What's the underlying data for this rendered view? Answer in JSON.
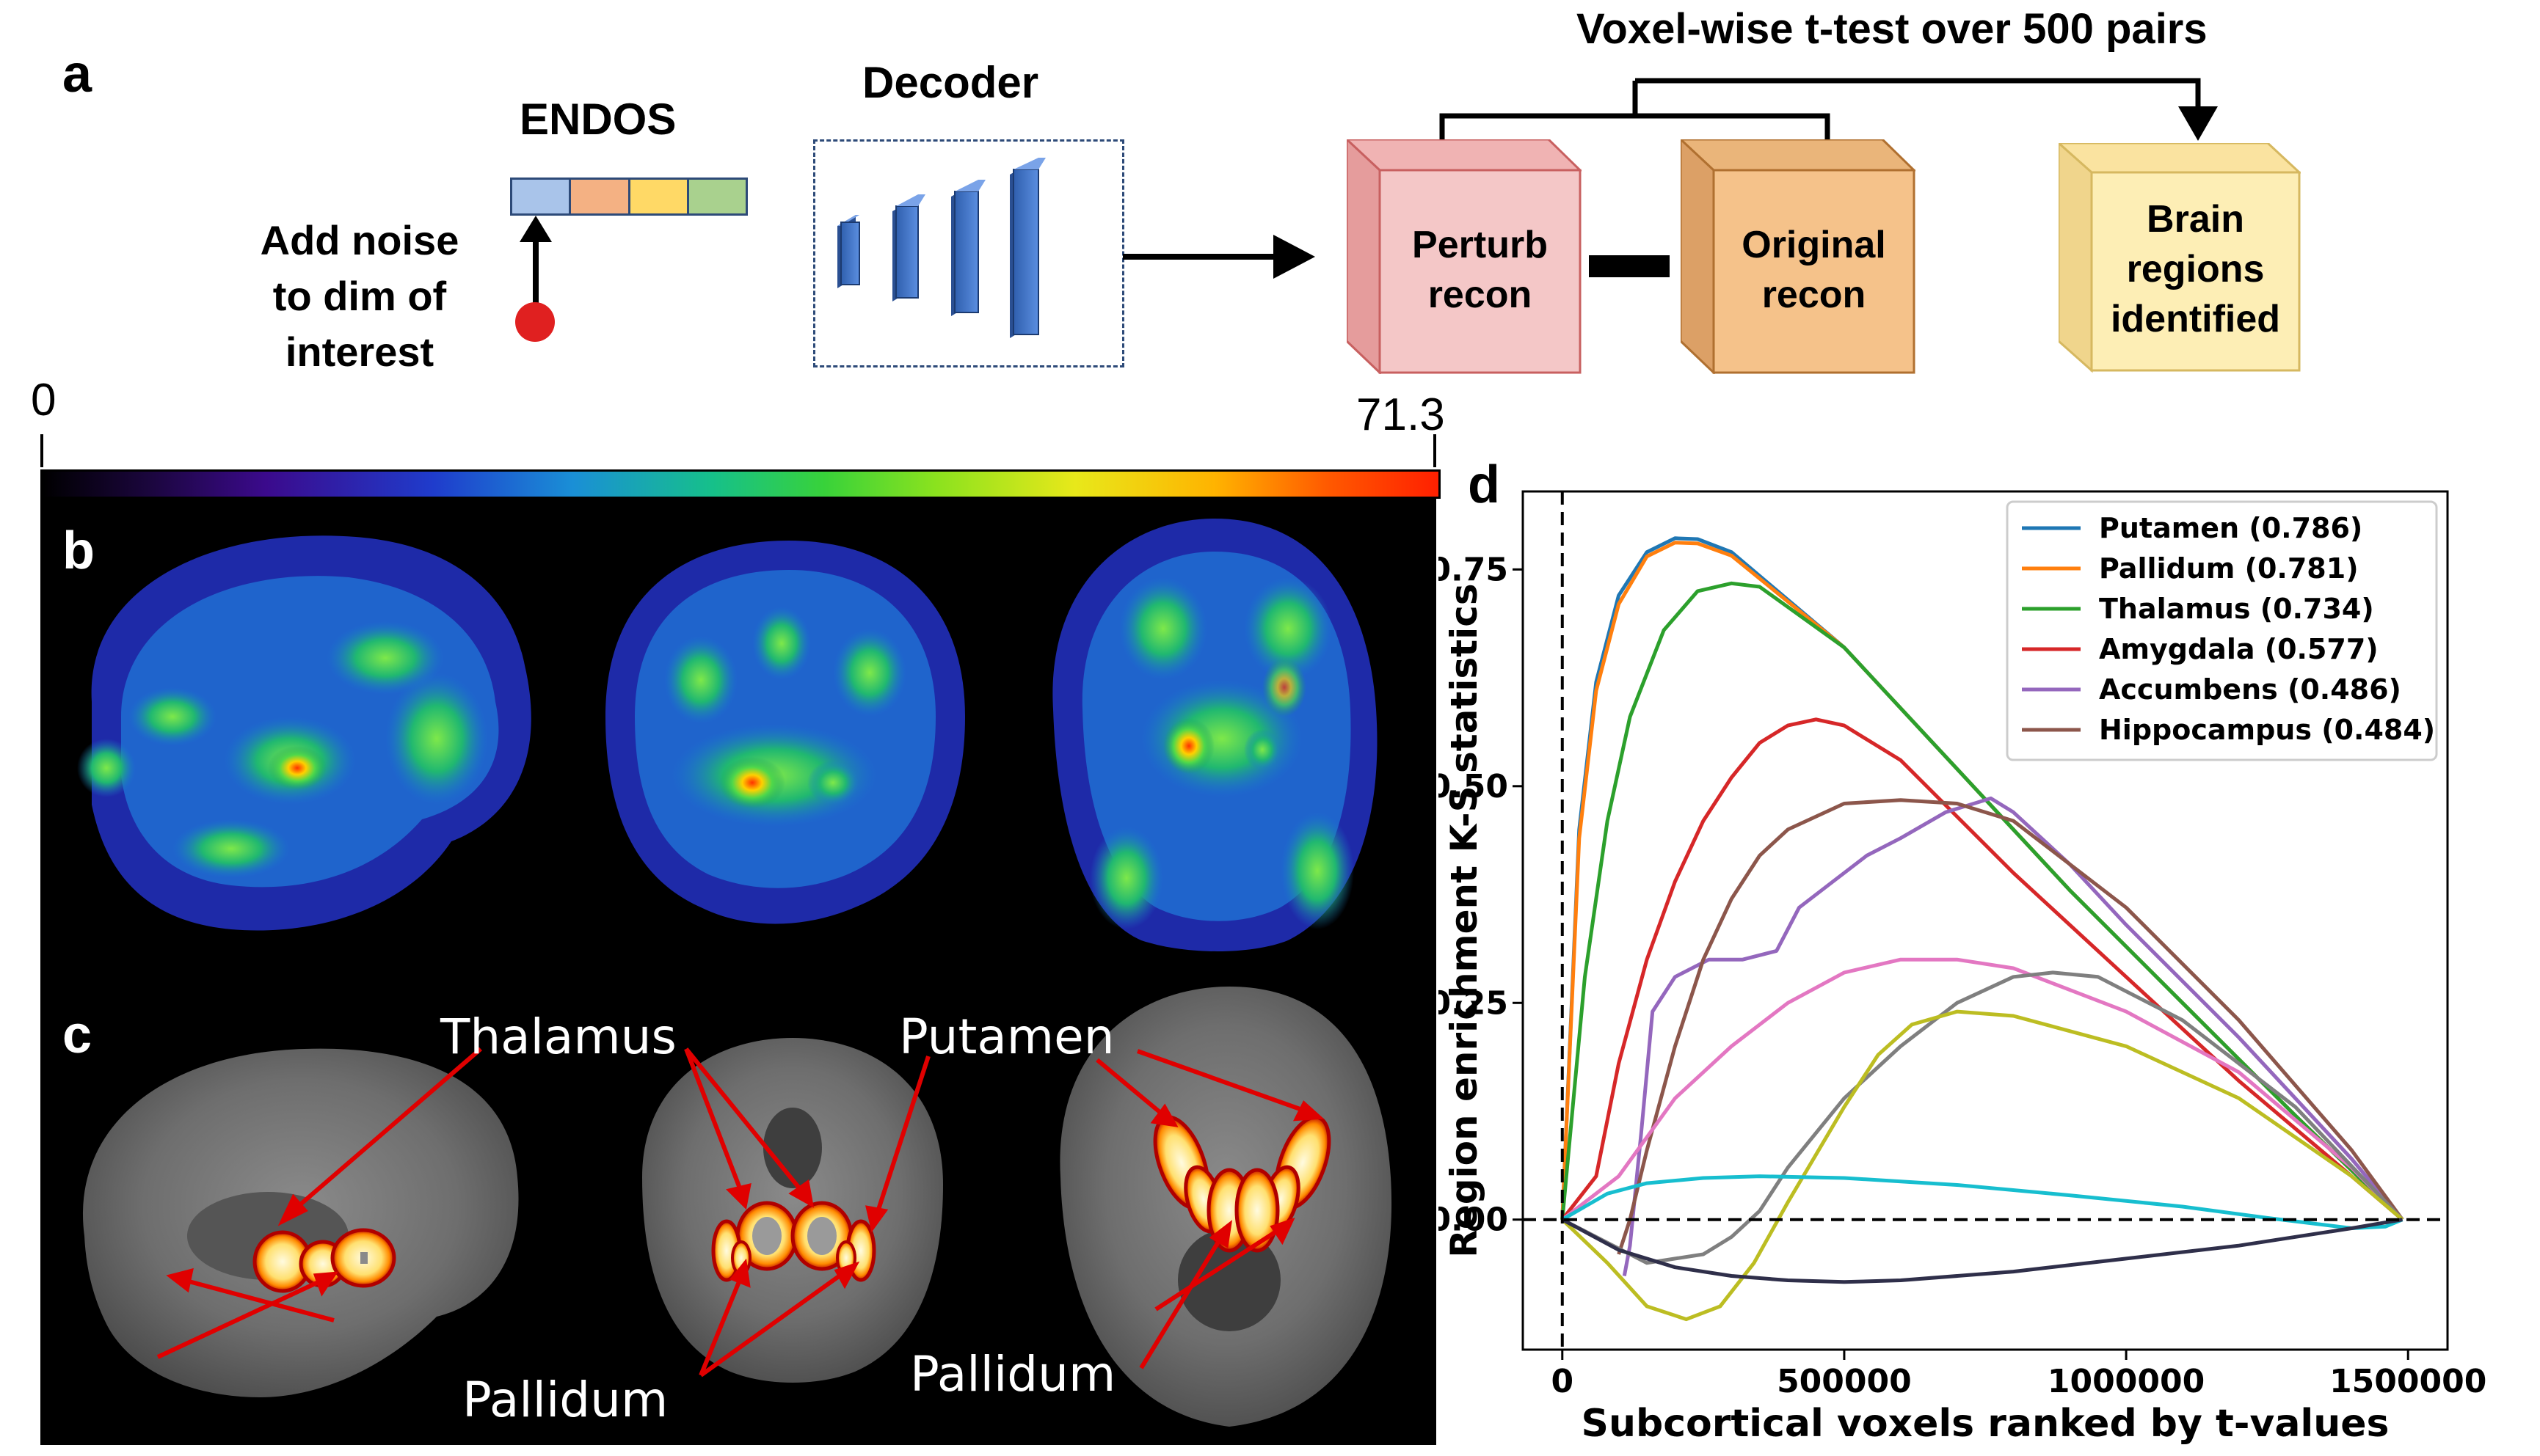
{
  "panel_labels": {
    "a": "a",
    "b": "b",
    "c": "c",
    "d": "d"
  },
  "pipeline": {
    "encoder_label": "ENDOS",
    "noise_text": [
      "Add noise",
      "to dim of",
      "interest"
    ],
    "decoder_label": "Decoder",
    "ttest_label": "Voxel-wise t-test over 500 pairs",
    "perturb": [
      "Perturb",
      "recon"
    ],
    "original": [
      "Original",
      "recon"
    ],
    "result": [
      "Brain",
      "regions",
      "identified"
    ],
    "colors": {
      "emb1": "#a9c4ea",
      "emb2": "#f4b183",
      "emb3": "#ffd966",
      "emb4": "#a9d18e",
      "perturb_face": "#f4c7c7",
      "original_face": "#f5c28a",
      "result_face": "#fdeeb5",
      "noise_dot": "#e02020",
      "decoder_block": "#4a7fd6"
    }
  },
  "colorbar": {
    "min": "0",
    "max": "71.3"
  },
  "anatomy_labels": {
    "thalamus": "Thalamus",
    "putamen": "Putamen",
    "pallidum_left": "Pallidum",
    "pallidum_right": "Pallidum"
  },
  "chart_data": {
    "type": "line",
    "xlabel": "Subcortical voxels ranked by t-values",
    "ylabel": "Region enrichment K-S statistics",
    "xlim": [
      -70000,
      1570000
    ],
    "ylim": [
      -0.15,
      0.84
    ],
    "xticks": [
      "0",
      "500000",
      "1000000",
      "1500000"
    ],
    "xtick_values": [
      0,
      500000,
      1000000,
      1500000
    ],
    "yticks": [
      "0.00",
      "0.25",
      "0.50",
      "0.75"
    ],
    "ytick_values": [
      0,
      0.25,
      0.5,
      0.75
    ],
    "legend_position": "top-right",
    "series": [
      {
        "name": "Putamen (0.786)",
        "color": "#1f77b4",
        "x": [
          0,
          30000,
          60000,
          100000,
          150000,
          200000,
          240000,
          300000,
          500000,
          700000,
          900000,
          1100000,
          1300000,
          1490000
        ],
        "y": [
          0,
          0.45,
          0.62,
          0.72,
          0.77,
          0.786,
          0.785,
          0.77,
          0.66,
          0.52,
          0.38,
          0.25,
          0.12,
          0
        ]
      },
      {
        "name": "Pallidum (0.781)",
        "color": "#ff7f0e",
        "x": [
          0,
          30000,
          60000,
          100000,
          150000,
          200000,
          240000,
          300000,
          500000,
          700000,
          900000,
          1100000,
          1300000,
          1490000
        ],
        "y": [
          0,
          0.44,
          0.61,
          0.71,
          0.765,
          0.781,
          0.78,
          0.766,
          0.66,
          0.52,
          0.38,
          0.25,
          0.12,
          0
        ]
      },
      {
        "name": "Thalamus (0.734)",
        "color": "#2ca02c",
        "x": [
          0,
          40000,
          80000,
          120000,
          180000,
          240000,
          300000,
          350000,
          500000,
          700000,
          900000,
          1100000,
          1300000,
          1490000
        ],
        "y": [
          0,
          0.28,
          0.46,
          0.58,
          0.68,
          0.725,
          0.734,
          0.73,
          0.66,
          0.52,
          0.38,
          0.25,
          0.12,
          0
        ]
      },
      {
        "name": "Amygdala (0.577)",
        "color": "#d62728",
        "x": [
          0,
          60000,
          100000,
          150000,
          200000,
          250000,
          300000,
          350000,
          400000,
          450000,
          500000,
          600000,
          800000,
          1000000,
          1200000,
          1400000,
          1490000
        ],
        "y": [
          0,
          0.05,
          0.18,
          0.3,
          0.39,
          0.46,
          0.51,
          0.55,
          0.57,
          0.577,
          0.57,
          0.53,
          0.4,
          0.28,
          0.16,
          0.05,
          0
        ]
      },
      {
        "name": "Accumbens (0.486)",
        "color": "#9467bd",
        "x": [
          110000,
          120000,
          140000,
          160000,
          200000,
          260000,
          320000,
          380000,
          420000,
          480000,
          540000,
          600000,
          680000,
          760000,
          800000,
          900000,
          1000000,
          1200000,
          1400000,
          1490000
        ],
        "y": [
          -0.065,
          -0.03,
          0.1,
          0.24,
          0.28,
          0.3,
          0.3,
          0.31,
          0.36,
          0.39,
          0.42,
          0.44,
          0.47,
          0.486,
          0.47,
          0.41,
          0.34,
          0.21,
          0.07,
          0
        ]
      },
      {
        "name": "Hippocampus (0.484)",
        "color": "#8c564b",
        "x": [
          100000,
          120000,
          150000,
          200000,
          250000,
          300000,
          350000,
          400000,
          500000,
          600000,
          700000,
          800000,
          1000000,
          1200000,
          1400000,
          1490000
        ],
        "y": [
          -0.04,
          0,
          0.08,
          0.2,
          0.3,
          0.37,
          0.42,
          0.45,
          0.48,
          0.484,
          0.48,
          0.46,
          0.36,
          0.23,
          0.08,
          0
        ]
      },
      {
        "color": "#e377c2",
        "x": [
          0,
          100000,
          200000,
          300000,
          400000,
          500000,
          600000,
          700000,
          800000,
          1000000,
          1200000,
          1400000,
          1490000
        ],
        "y": [
          0,
          0.05,
          0.14,
          0.2,
          0.25,
          0.285,
          0.3,
          0.3,
          0.29,
          0.24,
          0.17,
          0.06,
          0
        ]
      },
      {
        "color": "#7f7f7f",
        "x": [
          0,
          150000,
          250000,
          300000,
          350000,
          400000,
          500000,
          600000,
          700000,
          800000,
          870000,
          950000,
          1100000,
          1300000,
          1490000
        ],
        "y": [
          0,
          -0.05,
          -0.04,
          -0.02,
          0.01,
          0.06,
          0.14,
          0.2,
          0.25,
          0.28,
          0.285,
          0.28,
          0.23,
          0.13,
          0
        ]
      },
      {
        "color": "#bcbd22",
        "x": [
          0,
          80000,
          150000,
          220000,
          280000,
          340000,
          400000,
          500000,
          560000,
          620000,
          700000,
          800000,
          1000000,
          1200000,
          1400000,
          1490000
        ],
        "y": [
          0,
          -0.05,
          -0.1,
          -0.115,
          -0.1,
          -0.05,
          0.02,
          0.13,
          0.19,
          0.225,
          0.24,
          0.235,
          0.2,
          0.14,
          0.05,
          0
        ]
      },
      {
        "color": "#17becf",
        "x": [
          0,
          80000,
          150000,
          250000,
          350000,
          500000,
          700000,
          900000,
          1100000,
          1250000,
          1400000,
          1460000,
          1490000
        ],
        "y": [
          0,
          0.03,
          0.042,
          0.048,
          0.05,
          0.048,
          0.04,
          0.028,
          0.015,
          0.002,
          -0.01,
          -0.008,
          0
        ]
      },
      {
        "color": "#2f2f4a",
        "x": [
          0,
          100000,
          200000,
          300000,
          400000,
          500000,
          600000,
          800000,
          1000000,
          1200000,
          1400000,
          1490000
        ],
        "y": [
          0,
          -0.035,
          -0.055,
          -0.065,
          -0.07,
          -0.072,
          -0.07,
          -0.06,
          -0.045,
          -0.03,
          -0.01,
          0
        ]
      }
    ]
  }
}
